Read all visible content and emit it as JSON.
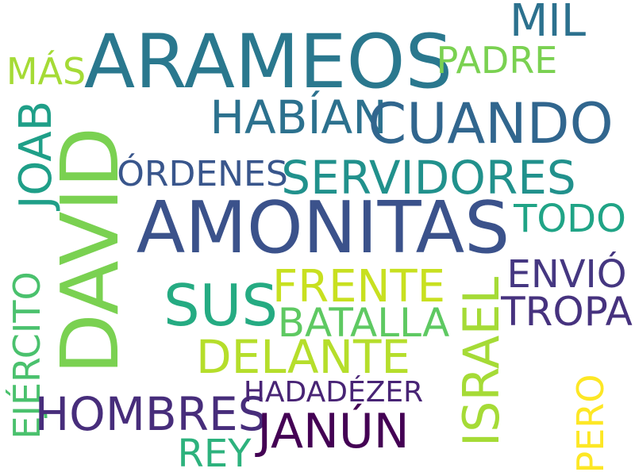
{
  "words": [
    {
      "text": "ARAMEOS",
      "color": "#2a788e"
    },
    {
      "text": "MIL",
      "color": "#2c718e"
    },
    {
      "text": "MÁS",
      "color": "#a5db36"
    },
    {
      "text": "PADRE",
      "color": "#7ad151"
    },
    {
      "text": "HABÍAN",
      "color": "#2c718e"
    },
    {
      "text": "CUANDO",
      "color": "#31668e"
    },
    {
      "text": "JOAB",
      "color": "#1f9f88"
    },
    {
      "text": "DAVID",
      "color": "#7ad151"
    },
    {
      "text": "ÓRDENES",
      "color": "#39568c"
    },
    {
      "text": "SERVIDORES",
      "color": "#21918c"
    },
    {
      "text": "AMONITAS",
      "color": "#3b528b"
    },
    {
      "text": "TODO",
      "color": "#20a486"
    },
    {
      "text": "SUS",
      "color": "#25ab82"
    },
    {
      "text": "FRENTE",
      "color": "#c8e020"
    },
    {
      "text": "ENVIÓ",
      "color": "#453781"
    },
    {
      "text": "TROPA",
      "color": "#46327e"
    },
    {
      "text": "BATALLA",
      "color": "#5ec962"
    },
    {
      "text": "ISRAEL",
      "color": "#a5db36"
    },
    {
      "text": "DELANTE",
      "color": "#b5de2b"
    },
    {
      "text": "EJÉRCITO",
      "color": "#4ac16d"
    },
    {
      "text": "HOMBRES",
      "color": "#472d7b"
    },
    {
      "text": "HADADÉZER",
      "color": "#482475"
    },
    {
      "text": "JANÚN",
      "color": "#440154"
    },
    {
      "text": "REY",
      "color": "#2db27d"
    },
    {
      "text": "PERO",
      "color": "#fde725"
    }
  ]
}
